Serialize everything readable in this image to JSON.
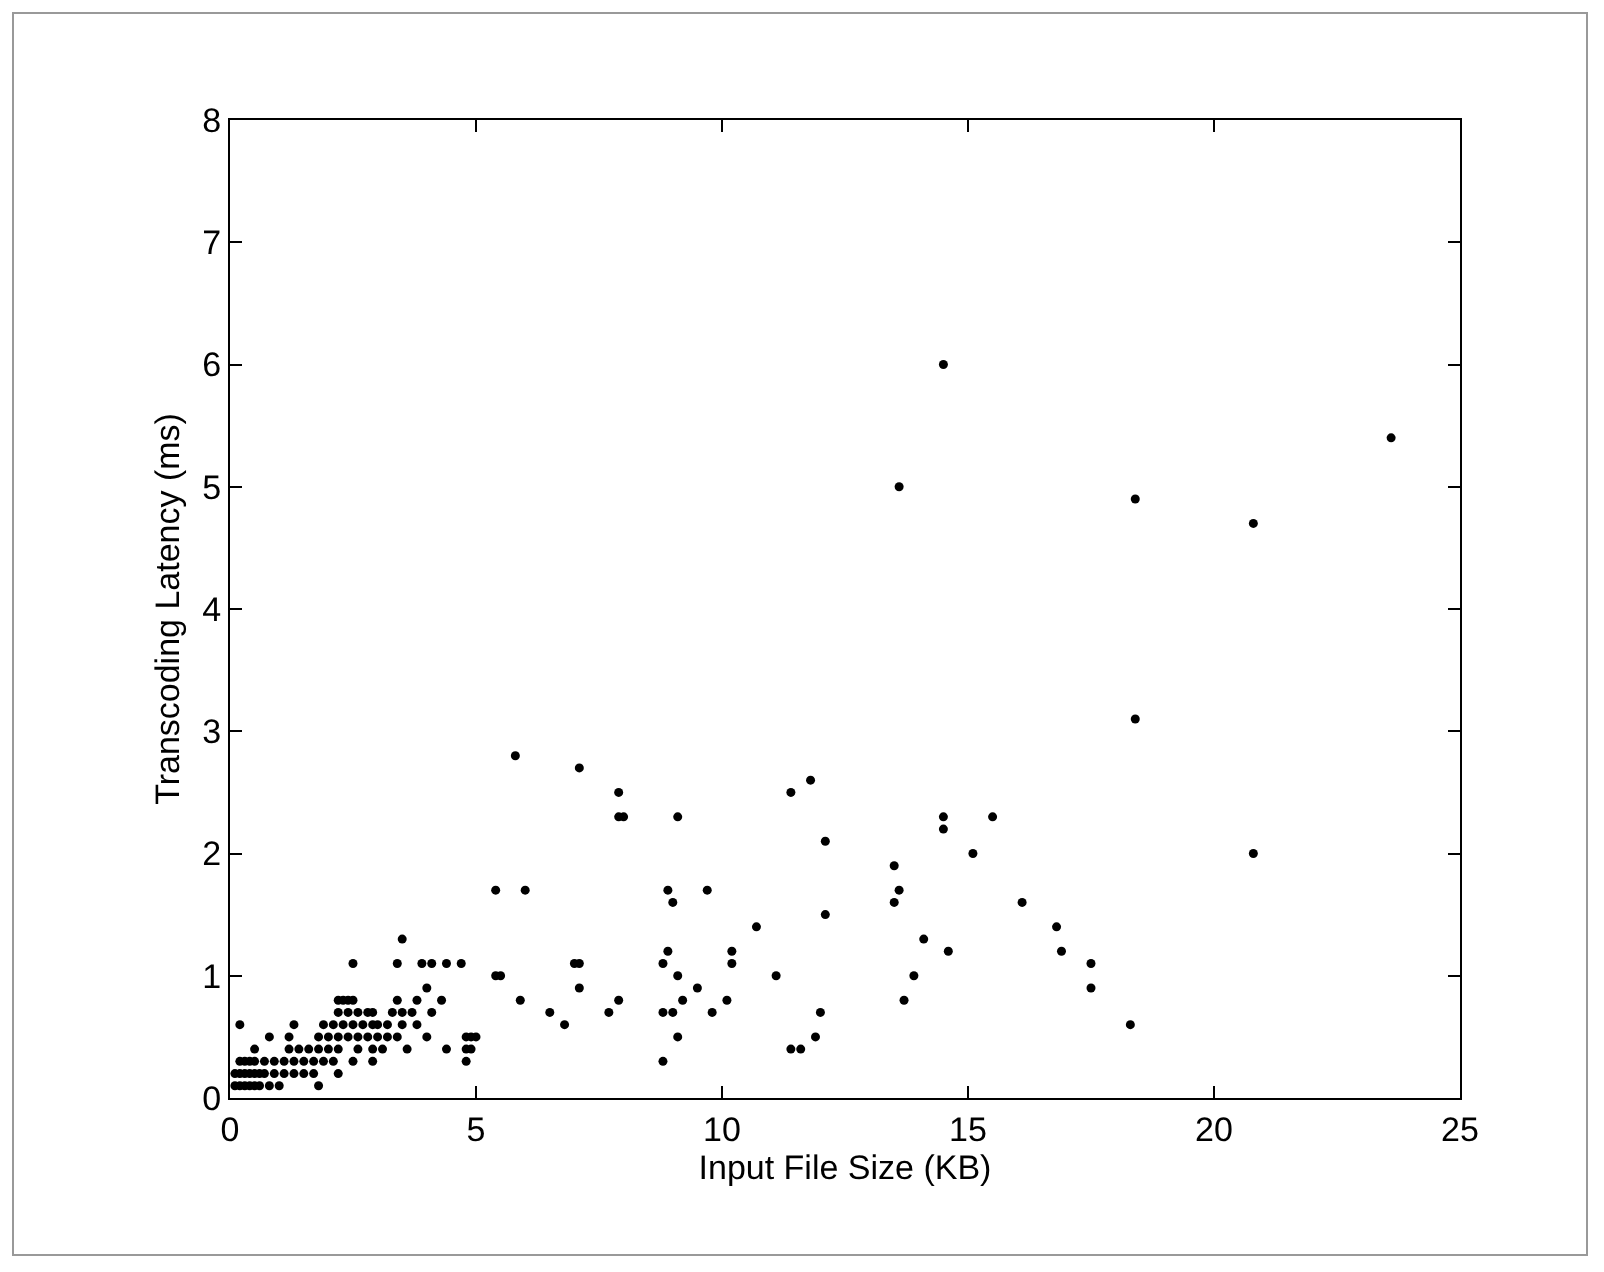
{
  "chart_data": {
    "type": "scatter",
    "xlabel": "Input File Size (KB)",
    "ylabel": "Transcoding Latency (ms)",
    "xlim": [
      0,
      25
    ],
    "xticks": [
      0,
      5,
      10,
      15,
      20,
      25
    ],
    "ylim": [
      0,
      8
    ],
    "yticks": [
      0,
      1,
      2,
      3,
      4,
      5,
      6,
      7,
      8
    ],
    "grid": false,
    "marker": "circle",
    "series": [
      {
        "color": "#000000",
        "x": [
          0.1,
          0.2,
          0.3,
          0.4,
          0.5,
          0.6,
          0.8,
          1.0,
          1.8,
          0.1,
          0.2,
          0.3,
          0.4,
          0.5,
          0.6,
          0.7,
          0.9,
          1.1,
          1.3,
          1.5,
          1.7,
          2.2,
          0.2,
          0.3,
          0.4,
          0.5,
          0.7,
          0.9,
          1.1,
          1.3,
          1.5,
          1.7,
          1.9,
          2.1,
          2.5,
          2.9,
          4.8,
          8.8,
          0.5,
          1.2,
          1.4,
          1.6,
          1.8,
          2.0,
          2.2,
          2.6,
          2.9,
          3.1,
          3.6,
          4.4,
          4.8,
          4.9,
          11.4,
          11.6,
          0.8,
          1.2,
          1.8,
          2.0,
          2.2,
          2.4,
          2.6,
          2.8,
          3.0,
          3.2,
          3.4,
          4.0,
          4.8,
          4.9,
          5.0,
          9.1,
          11.9,
          0.2,
          1.3,
          1.9,
          2.1,
          2.3,
          2.5,
          2.7,
          2.9,
          3.0,
          3.2,
          3.5,
          3.8,
          6.8,
          18.3,
          2.2,
          2.4,
          2.6,
          2.8,
          2.9,
          3.3,
          3.5,
          3.7,
          4.1,
          6.5,
          7.7,
          8.8,
          9.0,
          9.8,
          12.0,
          2.2,
          2.3,
          2.4,
          2.5,
          3.4,
          3.8,
          4.3,
          5.9,
          7.9,
          9.2,
          10.1,
          13.7,
          4.0,
          7.1,
          9.5,
          17.5,
          5.4,
          5.5,
          9.1,
          11.1,
          13.9,
          2.5,
          3.4,
          3.9,
          4.1,
          4.4,
          4.7,
          7.0,
          7.1,
          8.8,
          10.2,
          17.5,
          8.9,
          10.2,
          14.6,
          16.9,
          3.5,
          14.1,
          10.7,
          16.8,
          12.1,
          9.0,
          13.5,
          16.1,
          5.4,
          6.0,
          8.9,
          9.7,
          13.6,
          13.5,
          15.1,
          20.8,
          12.1,
          14.5,
          7.9,
          8.0,
          9.1,
          14.5,
          15.5,
          7.9,
          11.4,
          11.8,
          7.1,
          5.8,
          18.4,
          20.8,
          18.4,
          13.6,
          23.6,
          14.5
        ],
        "values": [
          0.1,
          0.1,
          0.1,
          0.1,
          0.1,
          0.1,
          0.1,
          0.1,
          0.1,
          0.2,
          0.2,
          0.2,
          0.2,
          0.2,
          0.2,
          0.2,
          0.2,
          0.2,
          0.2,
          0.2,
          0.2,
          0.2,
          0.3,
          0.3,
          0.3,
          0.3,
          0.3,
          0.3,
          0.3,
          0.3,
          0.3,
          0.3,
          0.3,
          0.3,
          0.3,
          0.3,
          0.3,
          0.3,
          0.4,
          0.4,
          0.4,
          0.4,
          0.4,
          0.4,
          0.4,
          0.4,
          0.4,
          0.4,
          0.4,
          0.4,
          0.4,
          0.4,
          0.4,
          0.4,
          0.5,
          0.5,
          0.5,
          0.5,
          0.5,
          0.5,
          0.5,
          0.5,
          0.5,
          0.5,
          0.5,
          0.5,
          0.5,
          0.5,
          0.5,
          0.5,
          0.5,
          0.6,
          0.6,
          0.6,
          0.6,
          0.6,
          0.6,
          0.6,
          0.6,
          0.6,
          0.6,
          0.6,
          0.6,
          0.6,
          0.6,
          0.7,
          0.7,
          0.7,
          0.7,
          0.7,
          0.7,
          0.7,
          0.7,
          0.7,
          0.7,
          0.7,
          0.7,
          0.7,
          0.7,
          0.7,
          0.8,
          0.8,
          0.8,
          0.8,
          0.8,
          0.8,
          0.8,
          0.8,
          0.8,
          0.8,
          0.8,
          0.8,
          0.9,
          0.9,
          0.9,
          0.9,
          1.0,
          1.0,
          1.0,
          1.0,
          1.0,
          1.1,
          1.1,
          1.1,
          1.1,
          1.1,
          1.1,
          1.1,
          1.1,
          1.1,
          1.1,
          1.1,
          1.2,
          1.2,
          1.2,
          1.2,
          1.3,
          1.3,
          1.4,
          1.4,
          1.5,
          1.6,
          1.6,
          1.6,
          1.7,
          1.7,
          1.7,
          1.7,
          1.7,
          1.9,
          2.0,
          2.0,
          2.1,
          2.2,
          2.3,
          2.3,
          2.3,
          2.3,
          2.3,
          2.5,
          2.5,
          2.6,
          2.7,
          2.8,
          3.1,
          4.7,
          4.9,
          5.0,
          5.4,
          6.0
        ]
      }
    ]
  }
}
